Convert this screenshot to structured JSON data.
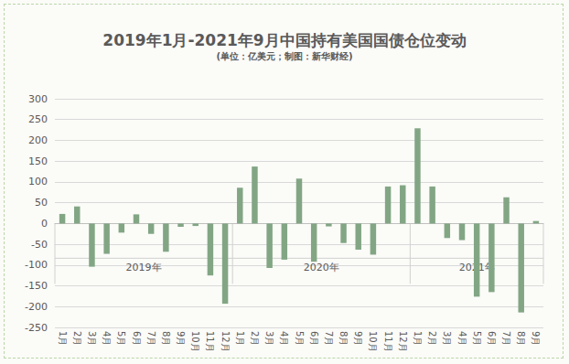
{
  "chart_data": {
    "type": "bar",
    "title": "2019年1月-2021年9月中国持有美国国债仓位变动",
    "subtitle": "(单位：亿美元；制图：新华财经)",
    "categories": [
      "1月",
      "2月",
      "3月",
      "4月",
      "5月",
      "6月",
      "7月",
      "8月",
      "9月",
      "10月",
      "11月",
      "12月",
      "1月",
      "2月",
      "3月",
      "4月",
      "5月",
      "6月",
      "7月",
      "8月",
      "9月",
      "10月",
      "11月",
      "12月",
      "1月",
      "2月",
      "3月",
      "4月",
      "5月",
      "6月",
      "7月",
      "8月",
      "9月"
    ],
    "category_groups": [
      {
        "label": "2019年",
        "size": 12
      },
      {
        "label": "2020年",
        "size": 12
      },
      {
        "label": "2021年",
        "size": 9
      }
    ],
    "values": [
      23,
      41,
      -104,
      -73,
      -22,
      22,
      -25,
      -68,
      -8,
      -6,
      -125,
      -193,
      86,
      137,
      -107,
      -87,
      108,
      -92,
      -7,
      -47,
      -63,
      -75,
      89,
      92,
      229,
      89,
      -35,
      -40,
      -176,
      -165,
      63,
      -214,
      6
    ],
    "color": "#82a684",
    "ylim": [
      -250,
      300
    ],
    "yticks": [
      -250,
      -200,
      -150,
      -100,
      -50,
      0,
      50,
      100,
      150,
      200,
      250,
      300
    ],
    "grid": true
  }
}
